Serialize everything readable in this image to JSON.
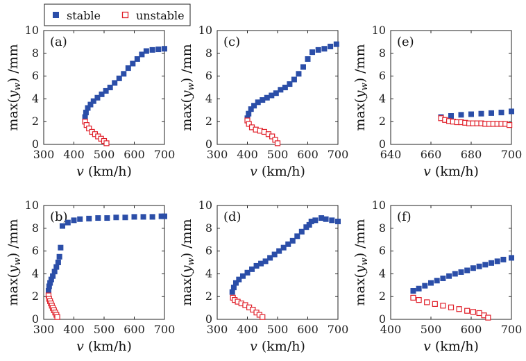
{
  "legend": {
    "stable_label": "stable",
    "unstable_label": "unstable",
    "stable_color": "#2b4ea8",
    "unstable_color": "#e0202a"
  },
  "chart_data": [
    {
      "type": "scatter",
      "panel_label": "(a)",
      "xlabel": "v (km/h)",
      "ylabel": "max(y_w) /mm",
      "xlim": [
        300,
        700
      ],
      "ylim": [
        0,
        10
      ],
      "xticks": [
        "300",
        "400",
        "500",
        "600",
        "700"
      ],
      "yticks": [
        "0",
        "2",
        "4",
        "6",
        "8",
        "10"
      ],
      "series": [
        {
          "name": "stable",
          "marker": "filled-square",
          "color": "#2b4ea8",
          "x": [
            437,
            440,
            446,
            455,
            465,
            478,
            492,
            506,
            520,
            535,
            550,
            565,
            580,
            595,
            610,
            625,
            640,
            660,
            680,
            700
          ],
          "y": [
            2.4,
            2.8,
            3.2,
            3.5,
            3.8,
            4.1,
            4.4,
            4.7,
            5.0,
            5.4,
            5.8,
            6.2,
            6.7,
            7.1,
            7.5,
            7.9,
            8.2,
            8.3,
            8.35,
            8.4
          ]
        },
        {
          "name": "unstable",
          "marker": "open-square",
          "color": "#e0202a",
          "x": [
            437,
            442,
            450,
            460,
            470,
            480,
            490,
            500,
            508
          ],
          "y": [
            2.0,
            1.7,
            1.4,
            1.1,
            0.9,
            0.7,
            0.5,
            0.3,
            0.1
          ]
        }
      ]
    },
    {
      "type": "scatter",
      "panel_label": "(c)",
      "xlabel": "v (km/h)",
      "ylabel": "max(y_w) /mm",
      "xlim": [
        300,
        700
      ],
      "ylim": [
        0,
        10
      ],
      "xticks": [
        "300",
        "400",
        "500",
        "600",
        "700"
      ],
      "yticks": [
        "0",
        "2",
        "4",
        "6",
        "8",
        "10"
      ],
      "series": [
        {
          "name": "stable",
          "marker": "filled-square",
          "color": "#2b4ea8",
          "x": [
            400,
            404,
            412,
            422,
            435,
            450,
            465,
            480,
            495,
            510,
            525,
            540,
            555,
            570,
            585,
            600,
            615,
            635,
            655,
            675,
            695
          ],
          "y": [
            2.3,
            2.7,
            3.1,
            3.4,
            3.7,
            3.9,
            4.1,
            4.3,
            4.5,
            4.8,
            5.0,
            5.3,
            5.7,
            6.2,
            6.8,
            7.5,
            8.1,
            8.3,
            8.4,
            8.6,
            8.8
          ]
        },
        {
          "name": "unstable",
          "marker": "open-square",
          "color": "#e0202a",
          "x": [
            400,
            405,
            415,
            428,
            442,
            456,
            470,
            482,
            492,
            500
          ],
          "y": [
            2.1,
            1.8,
            1.5,
            1.3,
            1.2,
            1.1,
            0.9,
            0.7,
            0.4,
            0.1
          ]
        }
      ]
    },
    {
      "type": "scatter",
      "panel_label": "(e)",
      "xlabel": "v (km/h)",
      "ylabel": "max(y_w) /mm",
      "xlim": [
        640,
        700
      ],
      "ylim": [
        0,
        10
      ],
      "xticks": [
        "640",
        "660",
        "680",
        "700"
      ],
      "yticks": [
        "0",
        "2",
        "4",
        "6",
        "8",
        "10"
      ],
      "series": [
        {
          "name": "stable",
          "marker": "filled-square",
          "color": "#2b4ea8",
          "x": [
            665,
            670,
            675,
            680,
            685,
            690,
            695,
            700
          ],
          "y": [
            2.4,
            2.5,
            2.6,
            2.65,
            2.7,
            2.75,
            2.8,
            2.9
          ]
        },
        {
          "name": "unstable",
          "marker": "open-square",
          "color": "#e0202a",
          "x": [
            665,
            667,
            669,
            671,
            673,
            675,
            677,
            679,
            681,
            683,
            685,
            687,
            689,
            691,
            693,
            695,
            697,
            699
          ],
          "y": [
            2.3,
            2.15,
            2.05,
            2.0,
            1.95,
            1.95,
            1.9,
            1.85,
            1.85,
            1.85,
            1.85,
            1.8,
            1.8,
            1.8,
            1.8,
            1.8,
            1.8,
            1.7
          ]
        }
      ]
    },
    {
      "type": "scatter",
      "panel_label": "(b)",
      "xlabel": "v (km/h)",
      "ylabel": "max(y_w) /mm",
      "xlim": [
        300,
        700
      ],
      "ylim": [
        0,
        10
      ],
      "xticks": [
        "300",
        "400",
        "500",
        "600",
        "700"
      ],
      "yticks": [
        "0",
        "2",
        "4",
        "6",
        "8",
        "10"
      ],
      "series": [
        {
          "name": "stable",
          "marker": "filled-square",
          "color": "#2b4ea8",
          "x": [
            316,
            318,
            321,
            325,
            330,
            336,
            342,
            348,
            352,
            356,
            362,
            380,
            400,
            420,
            450,
            480,
            510,
            540,
            570,
            600,
            630,
            660,
            690,
            700
          ],
          "y": [
            2.5,
            2.9,
            3.2,
            3.5,
            3.8,
            4.2,
            4.6,
            5.0,
            5.5,
            6.3,
            8.2,
            8.5,
            8.7,
            8.8,
            8.85,
            8.9,
            8.9,
            8.95,
            8.95,
            9.0,
            9.0,
            9.0,
            9.05,
            9.05
          ]
        },
        {
          "name": "unstable",
          "marker": "open-square",
          "color": "#e0202a",
          "x": [
            316,
            318,
            321,
            324,
            327,
            330,
            334,
            338,
            342,
            345
          ],
          "y": [
            2.1,
            1.8,
            1.6,
            1.4,
            1.2,
            1.0,
            0.8,
            0.6,
            0.4,
            0.2
          ]
        }
      ]
    },
    {
      "type": "scatter",
      "panel_label": "(d)",
      "xlabel": "v (km/h)",
      "ylabel": "max(y_w) /mm",
      "xlim": [
        300,
        700
      ],
      "ylim": [
        0,
        10
      ],
      "xticks": [
        "300",
        "400",
        "500",
        "600",
        "700"
      ],
      "yticks": [
        "0",
        "2",
        "4",
        "6",
        "8",
        "10"
      ],
      "series": [
        {
          "name": "stable",
          "marker": "filled-square",
          "color": "#2b4ea8",
          "x": [
            350,
            355,
            362,
            372,
            385,
            400,
            415,
            430,
            445,
            460,
            475,
            490,
            505,
            520,
            535,
            550,
            565,
            580,
            595,
            605,
            612,
            625,
            645,
            660,
            680,
            700
          ],
          "y": [
            2.4,
            2.8,
            3.2,
            3.5,
            3.8,
            4.1,
            4.4,
            4.7,
            4.9,
            5.1,
            5.4,
            5.7,
            6.0,
            6.3,
            6.6,
            6.9,
            7.3,
            7.7,
            8.1,
            8.3,
            8.6,
            8.7,
            8.9,
            8.8,
            8.7,
            8.6
          ]
        },
        {
          "name": "unstable",
          "marker": "open-square",
          "color": "#e0202a",
          "x": [
            352,
            358,
            368,
            380,
            393,
            406,
            418,
            430,
            440,
            450
          ],
          "y": [
            1.9,
            1.7,
            1.55,
            1.4,
            1.25,
            1.05,
            0.85,
            0.6,
            0.4,
            0.2
          ]
        }
      ]
    },
    {
      "type": "scatter",
      "panel_label": "(f)",
      "xlabel": "v (km/h)",
      "ylabel": "max(y_w) /mm",
      "xlim": [
        400,
        700
      ],
      "ylim": [
        0,
        10
      ],
      "xticks": [
        "400",
        "500",
        "600",
        "700"
      ],
      "yticks": [
        "0",
        "2",
        "4",
        "6",
        "8",
        "10"
      ],
      "series": [
        {
          "name": "stable",
          "marker": "filled-square",
          "color": "#2b4ea8",
          "x": [
            456,
            470,
            485,
            500,
            515,
            530,
            545,
            560,
            575,
            590,
            605,
            620,
            635,
            650,
            665,
            680,
            700
          ],
          "y": [
            2.5,
            2.7,
            2.95,
            3.2,
            3.4,
            3.6,
            3.8,
            4.0,
            4.15,
            4.3,
            4.5,
            4.65,
            4.8,
            4.95,
            5.1,
            5.25,
            5.4
          ]
        },
        {
          "name": "unstable",
          "marker": "open-square",
          "color": "#e0202a",
          "x": [
            456,
            470,
            490,
            510,
            530,
            550,
            570,
            590,
            605,
            620,
            632,
            642
          ],
          "y": [
            1.9,
            1.7,
            1.5,
            1.35,
            1.2,
            1.05,
            0.9,
            0.75,
            0.65,
            0.55,
            0.35,
            0.15
          ]
        }
      ]
    }
  ]
}
